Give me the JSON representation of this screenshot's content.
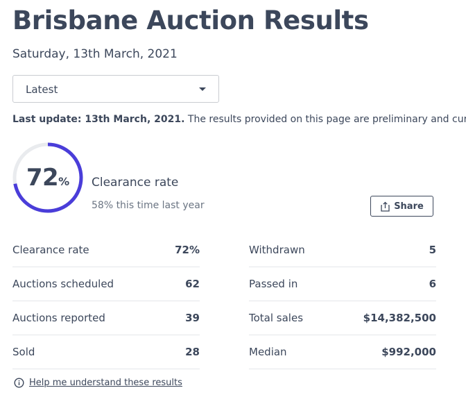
{
  "page": {
    "title": "Brisbane Auction Results",
    "date": "Saturday, 13th March, 2021"
  },
  "filter": {
    "selected": "Latest"
  },
  "update": {
    "label": "Last update: 13th March, 2021.",
    "text": " The results provided on this page are preliminary and current as of publication."
  },
  "gauge": {
    "value": "72",
    "unit": "%",
    "fraction": 0.72,
    "label": "Clearance rate",
    "last_year": "58% this time last year",
    "arc_color": "#4a3dd9",
    "track_color": "#e9ebee"
  },
  "share": {
    "label": "Share",
    "icon": "share-icon"
  },
  "stats_left": [
    {
      "label": "Clearance rate",
      "value": "72%"
    },
    {
      "label": "Auctions scheduled",
      "value": "62"
    },
    {
      "label": "Auctions reported",
      "value": "39"
    },
    {
      "label": "Sold",
      "value": "28"
    }
  ],
  "stats_right": [
    {
      "label": "Withdrawn",
      "value": "5"
    },
    {
      "label": "Passed in",
      "value": "6"
    },
    {
      "label": "Total sales",
      "value": "$14,382,500"
    },
    {
      "label": "Median",
      "value": "$992,000"
    }
  ],
  "help": {
    "icon": "info-icon",
    "link": "Help me understand these results"
  }
}
